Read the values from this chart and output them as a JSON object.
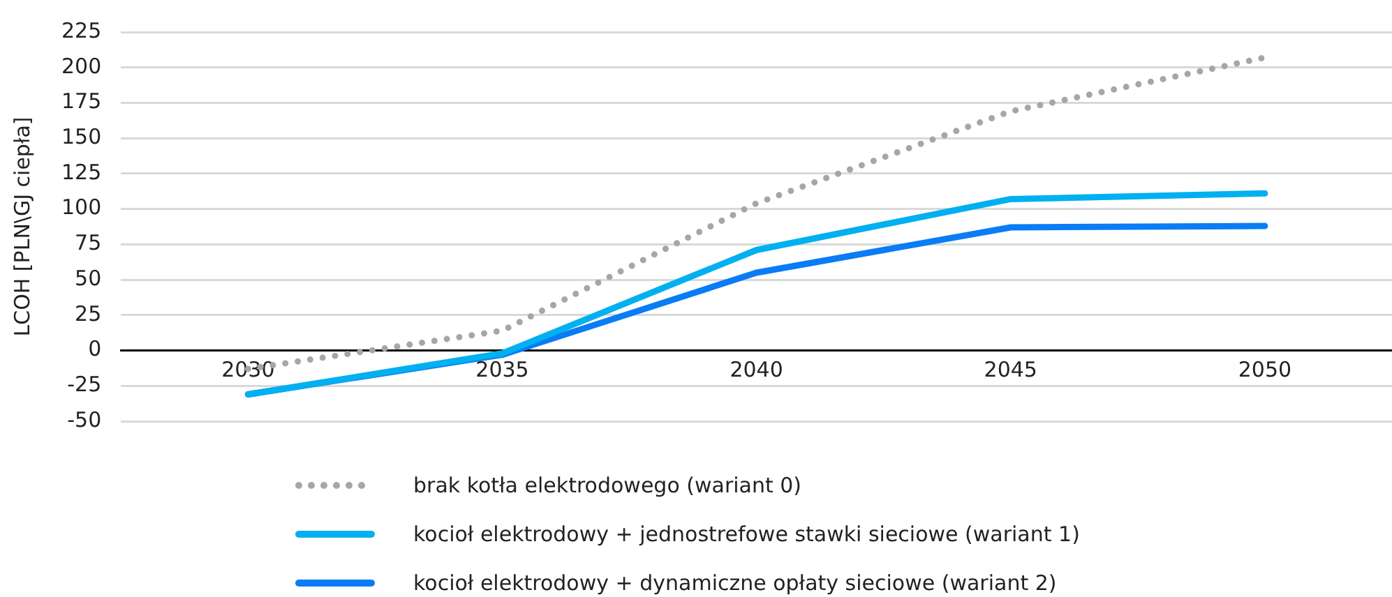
{
  "chart_data": {
    "type": "line",
    "ylabel": "LCOH [PLN\\GJ ciepła]",
    "categories": [
      "2030",
      "2035",
      "2040",
      "2045",
      "2050"
    ],
    "series": [
      {
        "name": "brak kotła elektrodowego (wariant 0)",
        "color": "#a6a6a6",
        "line_style": "dotted",
        "values": [
          -13,
          14,
          104,
          169,
          207
        ]
      },
      {
        "name": "kocioł elektrodowy + jednostrefowe stawki sieciowe (wariant 1)",
        "color": "#00b0f0",
        "line_style": "solid",
        "values": [
          -31,
          -2,
          71,
          107,
          111
        ]
      },
      {
        "name": "kocioł elektrodowy + dynamiczne opłaty sieciowe (wariant 2)",
        "color": "#0a7cf5",
        "line_style": "solid",
        "values": [
          -31,
          -3,
          55,
          87,
          88
        ]
      }
    ],
    "ylim": [
      -50,
      225
    ],
    "yticks": [
      -50,
      -25,
      0,
      25,
      50,
      75,
      100,
      125,
      150,
      175,
      200,
      225
    ],
    "grid": "y",
    "legend": "bottom",
    "marker": "none"
  }
}
